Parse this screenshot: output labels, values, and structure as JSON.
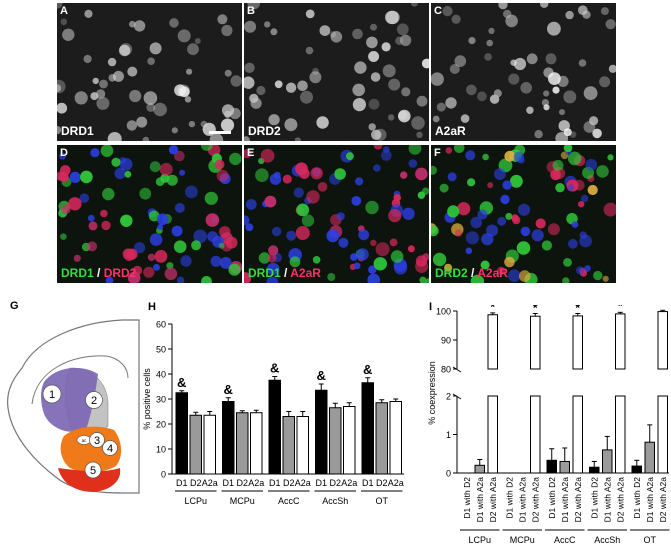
{
  "panels_top": [
    {
      "letter": "A",
      "caption": "DRD1"
    },
    {
      "letter": "B",
      "caption": "DRD2"
    },
    {
      "letter": "C",
      "caption": "A2aR"
    }
  ],
  "panels_merge": [
    {
      "letter": "D",
      "green": "DRD1",
      "sep": " / ",
      "red": "DRD2"
    },
    {
      "letter": "E",
      "green": "DRD1",
      "sep": " / ",
      "red": "A2aR"
    },
    {
      "letter": "F",
      "green": "DRD2",
      "sep": " / ",
      "red": "A2aR"
    }
  ],
  "panel_g": {
    "letter": "G",
    "regions": [
      "1",
      "2",
      "3",
      "4",
      "5"
    ],
    "small_label": "ac"
  },
  "panel_h": {
    "letter": "H"
  },
  "panel_i": {
    "letter": "I"
  },
  "colors": {
    "green": "#31e03b",
    "red": "#ff2f6a",
    "blue": "#2b3fe0",
    "purple": "#7d67b4",
    "orange": "#f07a1a",
    "red_region": "#e0301c",
    "gray_bar": "#9a9a9a"
  },
  "chart_data": [
    {
      "type": "bar",
      "panel": "H",
      "ylabel": "% positive cells",
      "ylim": [
        0,
        60
      ],
      "yticks": [
        "0",
        "10",
        "20",
        "30",
        "40",
        "50",
        "60"
      ],
      "bar_labels": [
        "D1",
        "D2",
        "A2a"
      ],
      "groups": [
        "LCPu",
        "MCPu",
        "AccC",
        "AccSh",
        "OT"
      ],
      "annotation": "&",
      "series": [
        {
          "name": "D1",
          "color": "#000000",
          "values": [
            32.5,
            29,
            37.5,
            33.5,
            36.5
          ],
          "errors": [
            0.8,
            1.5,
            1.5,
            2.5,
            2.0
          ],
          "annot": [
            "&",
            "&",
            "&",
            "&",
            "&"
          ]
        },
        {
          "name": "D2",
          "color": "#9a9a9a",
          "values": [
            23.5,
            24.5,
            23,
            26.5,
            28.5
          ],
          "errors": [
            1.2,
            0.8,
            2.0,
            1.8,
            1.2
          ]
        },
        {
          "name": "A2a",
          "color": "#ffffff",
          "values": [
            23.5,
            24.5,
            23,
            27,
            29
          ],
          "errors": [
            1.5,
            1.0,
            2.0,
            1.5,
            1.0
          ]
        }
      ]
    },
    {
      "type": "bar",
      "panel": "I",
      "ylabel": "% coexpression",
      "axis_break": true,
      "lower_ylim": [
        0,
        2
      ],
      "upper_ylim": [
        80,
        100
      ],
      "lower_ticks": [
        "0",
        "1",
        "2"
      ],
      "upper_ticks": [
        "80",
        "90",
        "100"
      ],
      "bar_labels": [
        "D1 with D2",
        "D1 with A2a",
        "D2 with A2a"
      ],
      "groups": [
        "LCPu",
        "MCPu",
        "AccC",
        "AccSh",
        "OT"
      ],
      "annotation": "*",
      "series": [
        {
          "name": "D1 with D2",
          "color": "#000000",
          "values": [
            0,
            0,
            0.33,
            0.15,
            0.18
          ],
          "errors": [
            0,
            0,
            0.3,
            0.15,
            0.15
          ]
        },
        {
          "name": "D1 with A2a",
          "color": "#9a9a9a",
          "values": [
            0.2,
            0,
            0.3,
            0.6,
            0.8
          ],
          "errors": [
            0.15,
            0,
            0.35,
            0.35,
            0.45
          ]
        },
        {
          "name": "D2 with A2a",
          "color": "#ffffff",
          "values": [
            98.7,
            98.2,
            98.3,
            99,
            99.8
          ],
          "errors": [
            0.3,
            0.6,
            0.5,
            0.2,
            0.1
          ],
          "annot": [
            "*",
            "*",
            "*",
            "*",
            "*"
          ]
        }
      ]
    }
  ]
}
